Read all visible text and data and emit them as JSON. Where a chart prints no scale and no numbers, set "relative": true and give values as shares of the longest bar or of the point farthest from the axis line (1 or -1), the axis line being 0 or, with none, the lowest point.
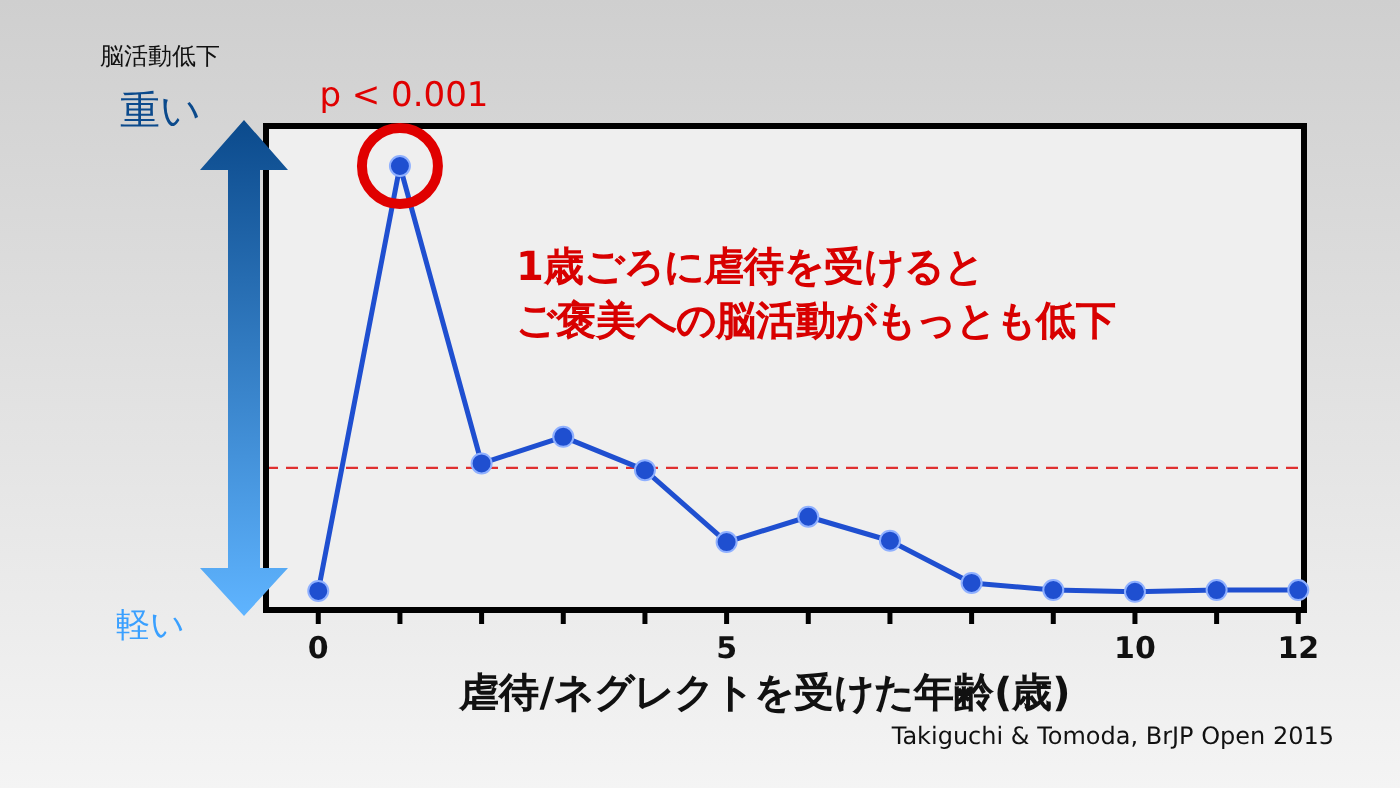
{
  "chart_data": {
    "type": "line",
    "relative": true,
    "ylabel": "脳活動低下",
    "xlabel": "虐待/ネグレクトを受けた年齢(歳)",
    "x": [
      0,
      1,
      2,
      3,
      4,
      5,
      6,
      7,
      8,
      9,
      10,
      11,
      12
    ],
    "xlim": [
      -0.64,
      12.07
    ],
    "xticks": [
      0,
      {
        "value": 1,
        "label": null
      },
      {
        "value": 2,
        "label": null
      },
      {
        "value": 3,
        "label": null
      },
      {
        "value": 4,
        "label": null
      },
      5,
      {
        "value": 6,
        "label": null
      },
      {
        "value": 7,
        "label": null
      },
      {
        "value": 8,
        "label": null
      },
      {
        "value": 9,
        "label": null
      },
      10,
      {
        "value": 11,
        "label": null
      },
      12
    ],
    "series": [
      {
        "color": "#1f4fd0",
        "values": [
          0.043,
          1,
          0.33,
          0.39,
          0.315,
          0.153,
          0.21,
          0.156,
          0.061,
          0.045,
          0.041,
          0.045,
          0.045
        ]
      }
    ],
    "marker": "circle",
    "line_style": "solid",
    "grid": false,
    "ref_lines": [
      {
        "axis": "y",
        "value": 0.32,
        "label": null,
        "color": "#e03030",
        "line_style": "dashed"
      }
    ],
    "annotations": [
      {
        "text": "p < 0.001",
        "x": 1,
        "y": 1
      },
      "1歳ごろに虐待を受けると",
      "ご褒美への脳活動がもっとも低下",
      "重い",
      "軽い",
      "Takiguchi & Tomoda, BrJP Open 2015"
    ]
  }
}
